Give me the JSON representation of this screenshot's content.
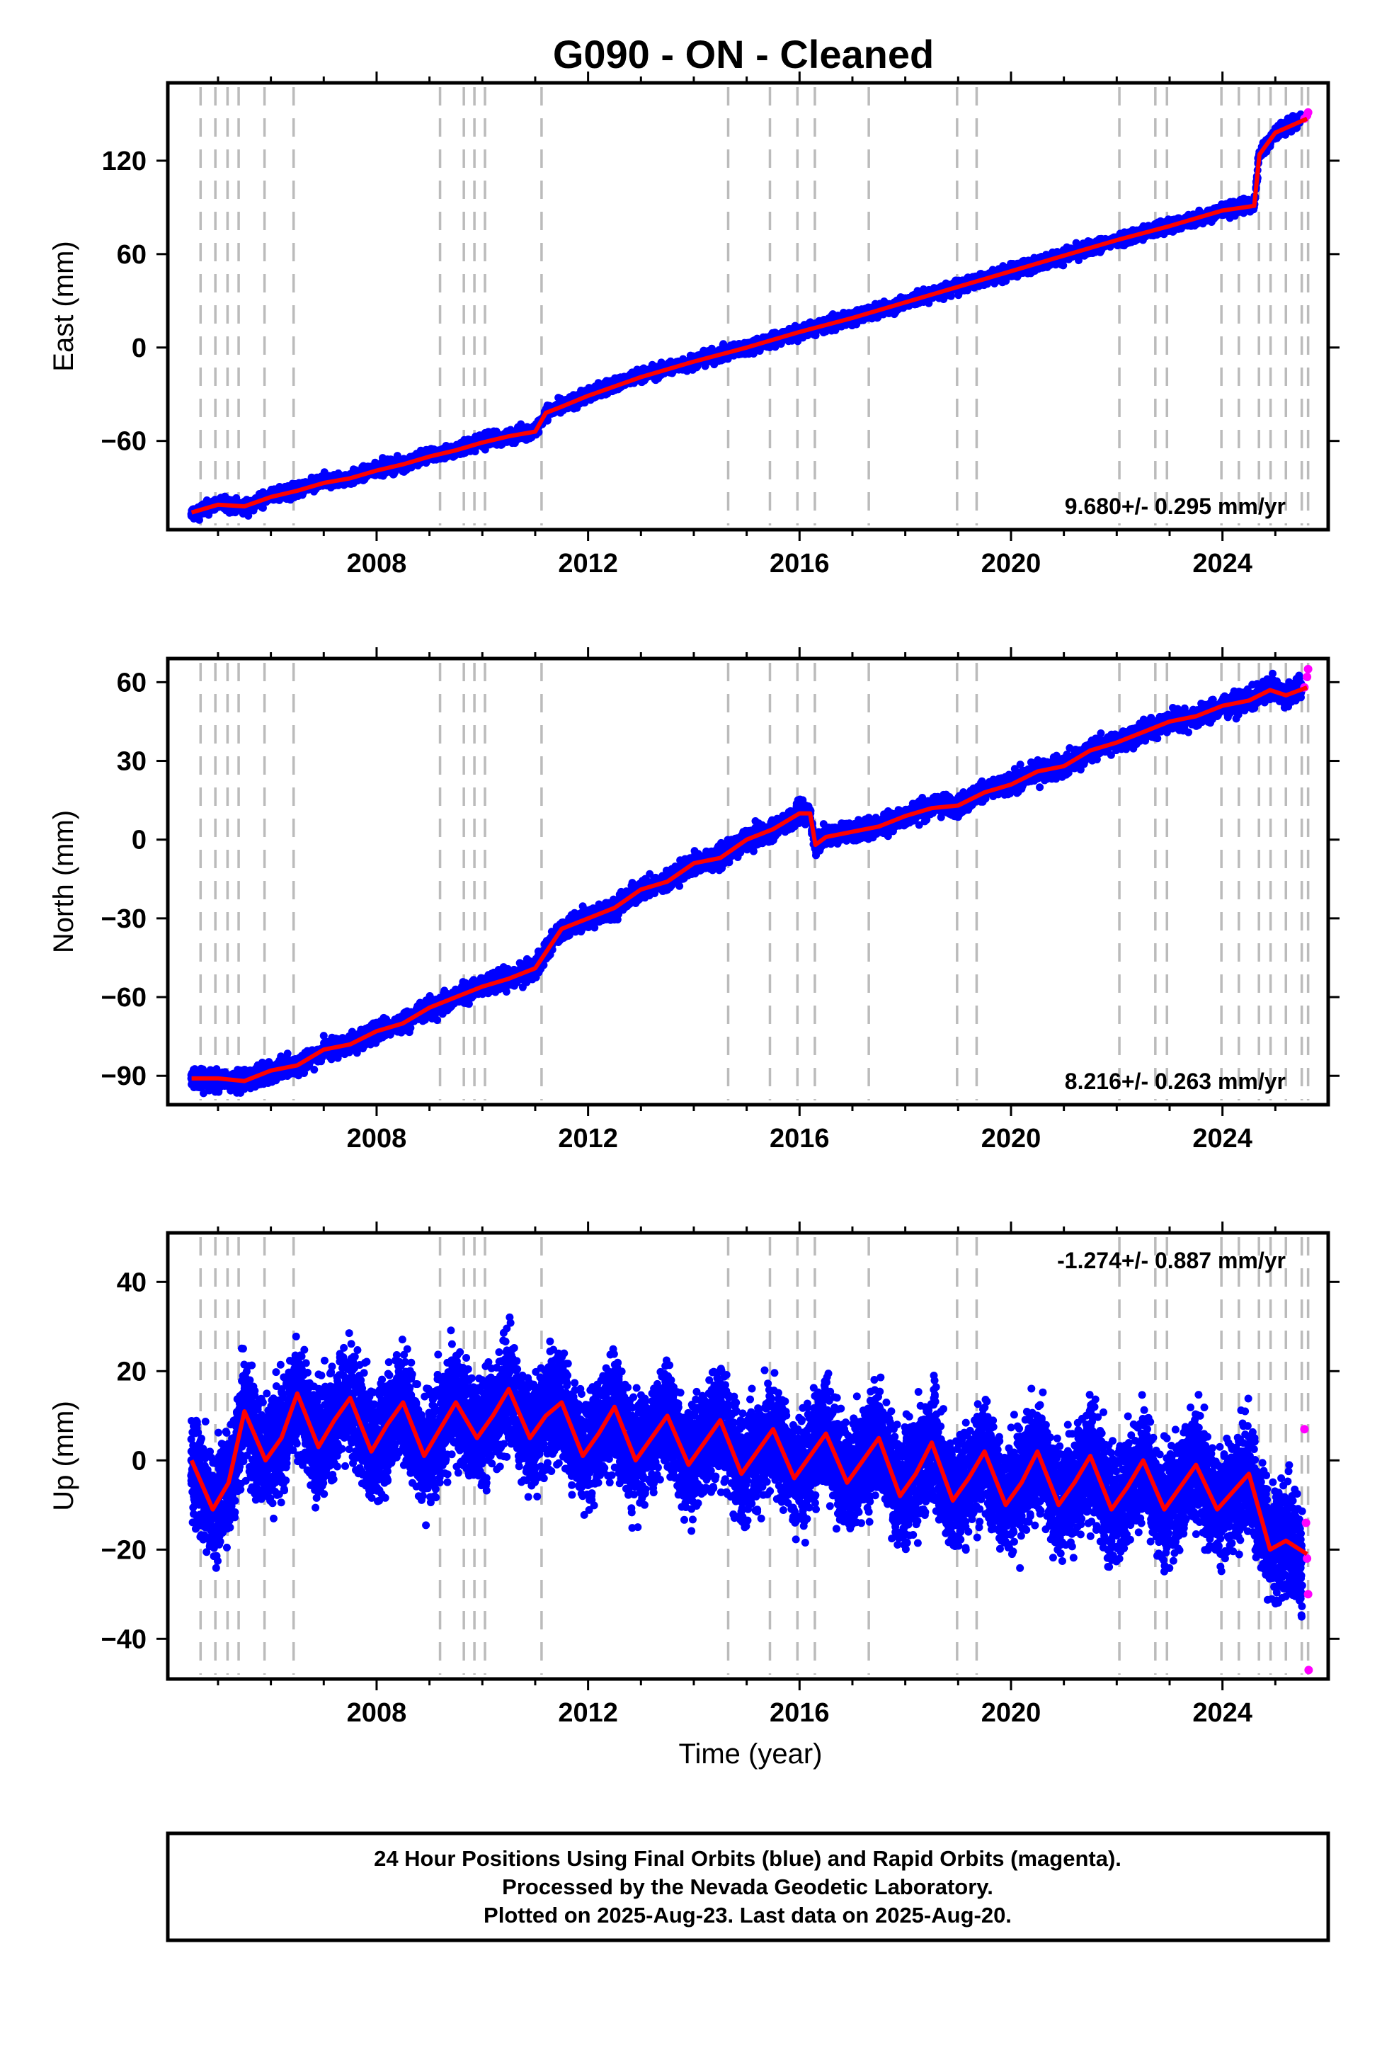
{
  "title": "G090  - ON - Cleaned",
  "x_axis_label": "Time (year)",
  "footer": {
    "line1": "24 Hour Positions Using Final Orbits (blue) and Rapid Orbits (magenta).",
    "line2": "Processed by the Nevada Geodetic Laboratory.",
    "line3": "Plotted on 2025-Aug-23. Last data on 2025-Aug-20."
  },
  "colors": {
    "final_orbits": "#0000ff",
    "rapid_orbits": "#ff00ff",
    "model_fit": "#ff0000",
    "event_lines": "#bbbbbb"
  },
  "chart_data": [
    {
      "type": "scatter",
      "component": "east",
      "ylabel": "East (mm)",
      "rate_text": "9.680+/- 0.295 mm/yr",
      "rate_position": "bottom-right",
      "xlim": [
        2004.05,
        2026.0
      ],
      "ylim": [
        -117,
        170
      ],
      "x_ticks": [
        2008,
        2012,
        2016,
        2020,
        2024
      ],
      "y_ticks": [
        -60,
        0,
        60,
        120
      ],
      "series": [
        {
          "name": "Final Orbits",
          "color": "#0000ff",
          "x": [
            2004.5,
            2005.0,
            2005.5,
            2006.0,
            2006.5,
            2007.0,
            2007.5,
            2008.0,
            2008.5,
            2009.0,
            2009.5,
            2010.0,
            2010.5,
            2011.0,
            2011.2,
            2011.5,
            2012.0,
            2013.0,
            2014.0,
            2015.0,
            2016.0,
            2017.0,
            2018.0,
            2019.0,
            2020.0,
            2021.0,
            2022.0,
            2023.0,
            2024.0,
            2024.6,
            2024.7,
            2025.0,
            2025.5
          ],
          "y": [
            -107,
            -100,
            -103,
            -95,
            -92,
            -86,
            -84,
            -78,
            -75,
            -69,
            -66,
            -60,
            -57,
            -54,
            -42,
            -38,
            -30,
            -18,
            -9,
            0,
            10,
            19,
            29,
            39,
            49,
            59,
            69,
            78,
            88,
            92,
            124,
            138,
            147
          ]
        },
        {
          "name": "Rapid Orbits",
          "color": "#ff00ff",
          "x": [
            2025.55,
            2025.6,
            2025.62
          ],
          "y": [
            147,
            149,
            151
          ]
        },
        {
          "name": "Model fit",
          "color": "#ff0000",
          "x": [
            2004.5,
            2005.0,
            2005.5,
            2006.0,
            2006.5,
            2007.0,
            2007.5,
            2008.0,
            2008.5,
            2009.0,
            2009.5,
            2010.0,
            2010.5,
            2011.0,
            2011.2,
            2011.5,
            2012.0,
            2013.0,
            2014.0,
            2015.0,
            2016.0,
            2017.0,
            2018.0,
            2019.0,
            2020.0,
            2021.0,
            2022.0,
            2023.0,
            2024.0,
            2024.6,
            2024.7,
            2025.0,
            2025.6
          ],
          "y": [
            -106,
            -101,
            -102,
            -96,
            -92,
            -87,
            -84,
            -79,
            -75,
            -70,
            -66,
            -61,
            -57,
            -54,
            -42,
            -38,
            -31,
            -19,
            -9,
            0,
            10,
            19,
            29,
            39,
            49,
            59,
            69,
            78,
            88,
            91,
            124,
            138,
            147
          ]
        }
      ]
    },
    {
      "type": "scatter",
      "component": "north",
      "ylabel": "North (mm)",
      "rate_text": "8.216+/- 0.263 mm/yr",
      "rate_position": "bottom-right",
      "xlim": [
        2004.05,
        2026.0
      ],
      "ylim": [
        -101,
        69
      ],
      "x_ticks": [
        2008,
        2012,
        2016,
        2020,
        2024
      ],
      "y_ticks": [
        -90,
        -60,
        -30,
        0,
        30,
        60
      ],
      "series": [
        {
          "name": "Final Orbits",
          "color": "#0000ff",
          "x": [
            2004.5,
            2005.0,
            2005.5,
            2006.0,
            2006.5,
            2007.0,
            2007.5,
            2008.0,
            2008.5,
            2009.0,
            2009.5,
            2010.0,
            2010.5,
            2011.0,
            2011.5,
            2012.0,
            2012.5,
            2013.0,
            2013.5,
            2014.0,
            2014.5,
            2015.0,
            2015.5,
            2016.0,
            2016.2,
            2016.3,
            2016.5,
            2017.0,
            2017.5,
            2018.0,
            2018.5,
            2019.0,
            2019.5,
            2020.0,
            2020.5,
            2021.0,
            2021.5,
            2022.0,
            2022.5,
            2023.0,
            2023.5,
            2024.0,
            2024.5,
            2024.9,
            2025.2,
            2025.5
          ],
          "y": [
            -91,
            -92,
            -92,
            -88,
            -86,
            -80,
            -78,
            -73,
            -70,
            -64,
            -60,
            -56,
            -53,
            -49,
            -34,
            -30,
            -26,
            -19,
            -16,
            -9,
            -7,
            0,
            4,
            10,
            10,
            -3,
            2,
            3,
            5,
            9,
            13,
            13,
            19,
            21,
            26,
            28,
            34,
            37,
            41,
            45,
            47,
            51,
            53,
            58,
            55,
            58
          ]
        },
        {
          "name": "Rapid Orbits",
          "color": "#ff00ff",
          "x": [
            2025.55,
            2025.6,
            2025.62
          ],
          "y": [
            58,
            62,
            65
          ]
        },
        {
          "name": "Model fit",
          "color": "#ff0000",
          "x": [
            2004.5,
            2005.0,
            2005.5,
            2006.0,
            2006.5,
            2007.0,
            2007.5,
            2008.0,
            2008.5,
            2009.0,
            2009.5,
            2010.0,
            2010.5,
            2011.0,
            2011.5,
            2012.0,
            2012.5,
            2013.0,
            2013.5,
            2014.0,
            2014.5,
            2015.0,
            2015.5,
            2016.0,
            2016.2,
            2016.3,
            2016.5,
            2017.0,
            2017.5,
            2018.0,
            2018.5,
            2019.0,
            2019.5,
            2020.0,
            2020.5,
            2021.0,
            2021.5,
            2022.0,
            2022.5,
            2023.0,
            2023.5,
            2024.0,
            2024.5,
            2024.9,
            2025.2,
            2025.6
          ],
          "y": [
            -91,
            -91,
            -92,
            -88,
            -86,
            -80,
            -78,
            -73,
            -70,
            -64,
            -60,
            -56,
            -53,
            -49,
            -34,
            -30,
            -26,
            -19,
            -16,
            -9,
            -7,
            0,
            4,
            10,
            10,
            -2,
            1,
            3,
            5,
            9,
            12,
            13,
            18,
            21,
            26,
            28,
            34,
            37,
            41,
            45,
            47,
            51,
            53,
            57,
            55,
            58
          ]
        }
      ]
    },
    {
      "type": "scatter",
      "component": "up",
      "ylabel": "Up (mm)",
      "rate_text": "-1.274+/- 0.887 mm/yr",
      "rate_position": "top-right",
      "xlim": [
        2004.05,
        2026.0
      ],
      "ylim": [
        -49,
        51
      ],
      "x_ticks": [
        2008,
        2012,
        2016,
        2020,
        2024
      ],
      "y_ticks": [
        -40,
        -20,
        0,
        20,
        40
      ],
      "series": [
        {
          "name": "Final Orbits",
          "color": "#0000ff",
          "x": [
            2004.5,
            2004.9,
            2005.2,
            2005.5,
            2005.9,
            2006.2,
            2006.5,
            2006.9,
            2007.2,
            2007.5,
            2007.9,
            2008.2,
            2008.5,
            2008.9,
            2009.2,
            2009.5,
            2009.9,
            2010.2,
            2010.5,
            2010.9,
            2011.2,
            2011.5,
            2011.9,
            2012.2,
            2012.5,
            2012.9,
            2013.2,
            2013.5,
            2013.9,
            2014.2,
            2014.5,
            2014.9,
            2015.2,
            2015.5,
            2015.9,
            2016.2,
            2016.5,
            2016.9,
            2017.2,
            2017.5,
            2017.9,
            2018.2,
            2018.5,
            2018.9,
            2019.2,
            2019.5,
            2019.9,
            2020.2,
            2020.5,
            2020.9,
            2021.2,
            2021.5,
            2021.9,
            2022.2,
            2022.5,
            2022.9,
            2023.2,
            2023.5,
            2023.9,
            2024.2,
            2024.5,
            2024.9,
            2025.2,
            2025.5
          ],
          "y": [
            0,
            -11,
            -5,
            11,
            0,
            5,
            15,
            3,
            9,
            14,
            2,
            8,
            13,
            1,
            7,
            13,
            5,
            10,
            16,
            5,
            10,
            13,
            1,
            6,
            12,
            0,
            5,
            10,
            -1,
            4,
            9,
            -3,
            2,
            7,
            -4,
            1,
            6,
            -5,
            0,
            5,
            -8,
            -3,
            4,
            -9,
            -4,
            2,
            -10,
            -5,
            2,
            -10,
            -5,
            1,
            -11,
            -6,
            0,
            -11,
            -6,
            -1,
            -11,
            -7,
            -3,
            -20,
            -18,
            -21
          ]
        },
        {
          "name": "Rapid Orbits",
          "color": "#ff00ff",
          "x": [
            2025.55,
            2025.58,
            2025.6,
            2025.62,
            2025.63
          ],
          "y": [
            7,
            -14,
            -22,
            -30,
            -47
          ]
        },
        {
          "name": "Model fit",
          "color": "#ff0000",
          "x": [
            2004.5,
            2004.9,
            2005.2,
            2005.5,
            2005.9,
            2006.2,
            2006.5,
            2006.9,
            2007.2,
            2007.5,
            2007.9,
            2008.2,
            2008.5,
            2008.9,
            2009.2,
            2009.5,
            2009.9,
            2010.2,
            2010.5,
            2010.9,
            2011.2,
            2011.5,
            2011.9,
            2012.2,
            2012.5,
            2012.9,
            2013.2,
            2013.5,
            2013.9,
            2014.2,
            2014.5,
            2014.9,
            2015.2,
            2015.5,
            2015.9,
            2016.2,
            2016.5,
            2016.9,
            2017.2,
            2017.5,
            2017.9,
            2018.2,
            2018.5,
            2018.9,
            2019.2,
            2019.5,
            2019.9,
            2020.2,
            2020.5,
            2020.9,
            2021.2,
            2021.5,
            2021.9,
            2022.2,
            2022.5,
            2022.9,
            2023.2,
            2023.5,
            2023.9,
            2024.2,
            2024.5,
            2024.9,
            2025.2,
            2025.6
          ],
          "y": [
            0,
            -11,
            -5,
            11,
            0,
            5,
            15,
            3,
            9,
            14,
            2,
            8,
            13,
            1,
            7,
            13,
            5,
            10,
            16,
            5,
            10,
            13,
            1,
            6,
            12,
            0,
            5,
            10,
            -1,
            4,
            9,
            -3,
            2,
            7,
            -4,
            1,
            6,
            -5,
            0,
            5,
            -8,
            -3,
            4,
            -9,
            -4,
            2,
            -10,
            -5,
            2,
            -10,
            -5,
            1,
            -11,
            -6,
            0,
            -11,
            -6,
            -1,
            -11,
            -7,
            -3,
            -20,
            -18,
            -21
          ]
        }
      ]
    }
  ],
  "event_lines_years": [
    2004.67,
    2004.95,
    2005.18,
    2005.39,
    2005.88,
    2006.43,
    2009.2,
    2009.65,
    2009.85,
    2010.05,
    2011.12,
    2014.65,
    2015.44,
    2015.96,
    2016.29,
    2017.31,
    2018.98,
    2019.35,
    2022.05,
    2022.73,
    2022.95,
    2023.98,
    2024.31,
    2024.69,
    2024.91,
    2025.2,
    2025.5,
    2025.62
  ]
}
